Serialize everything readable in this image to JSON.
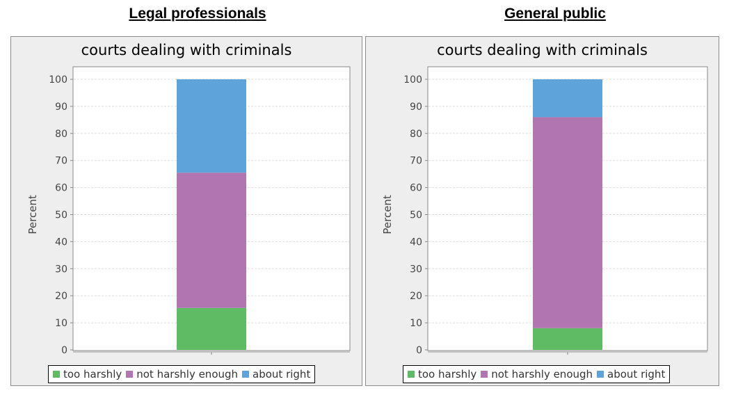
{
  "headings": {
    "left": "Legal professionals",
    "right": "General public"
  },
  "legend": {
    "too_harshly": "too harshly",
    "not_harshly_enough": "not harshly enough",
    "about_right": "about right"
  },
  "colors": {
    "too_harshly": "#5fbc64",
    "not_harshly_enough": "#b176b2",
    "about_right": "#5ea3d9"
  },
  "chart_data": [
    {
      "type": "bar",
      "stacked": true,
      "title": "courts dealing with criminals",
      "ylabel": "Percent",
      "xlabel": "",
      "ylim": [
        0,
        100
      ],
      "yticks": [
        0,
        10,
        20,
        30,
        40,
        50,
        60,
        70,
        80,
        90,
        100
      ],
      "grid": true,
      "legend_position": "bottom",
      "series": [
        {
          "name": "too harshly",
          "values": [
            15.5
          ]
        },
        {
          "name": "not harshly enough",
          "values": [
            50
          ]
        },
        {
          "name": "about right",
          "values": [
            34.5
          ]
        }
      ]
    },
    {
      "type": "bar",
      "stacked": true,
      "title": "courts dealing with criminals",
      "ylabel": "Percent",
      "xlabel": "",
      "ylim": [
        0,
        100
      ],
      "yticks": [
        0,
        10,
        20,
        30,
        40,
        50,
        60,
        70,
        80,
        90,
        100
      ],
      "grid": true,
      "legend_position": "bottom",
      "series": [
        {
          "name": "too harshly",
          "values": [
            8
          ]
        },
        {
          "name": "not harshly enough",
          "values": [
            78
          ]
        },
        {
          "name": "about right",
          "values": [
            14
          ]
        }
      ]
    }
  ]
}
